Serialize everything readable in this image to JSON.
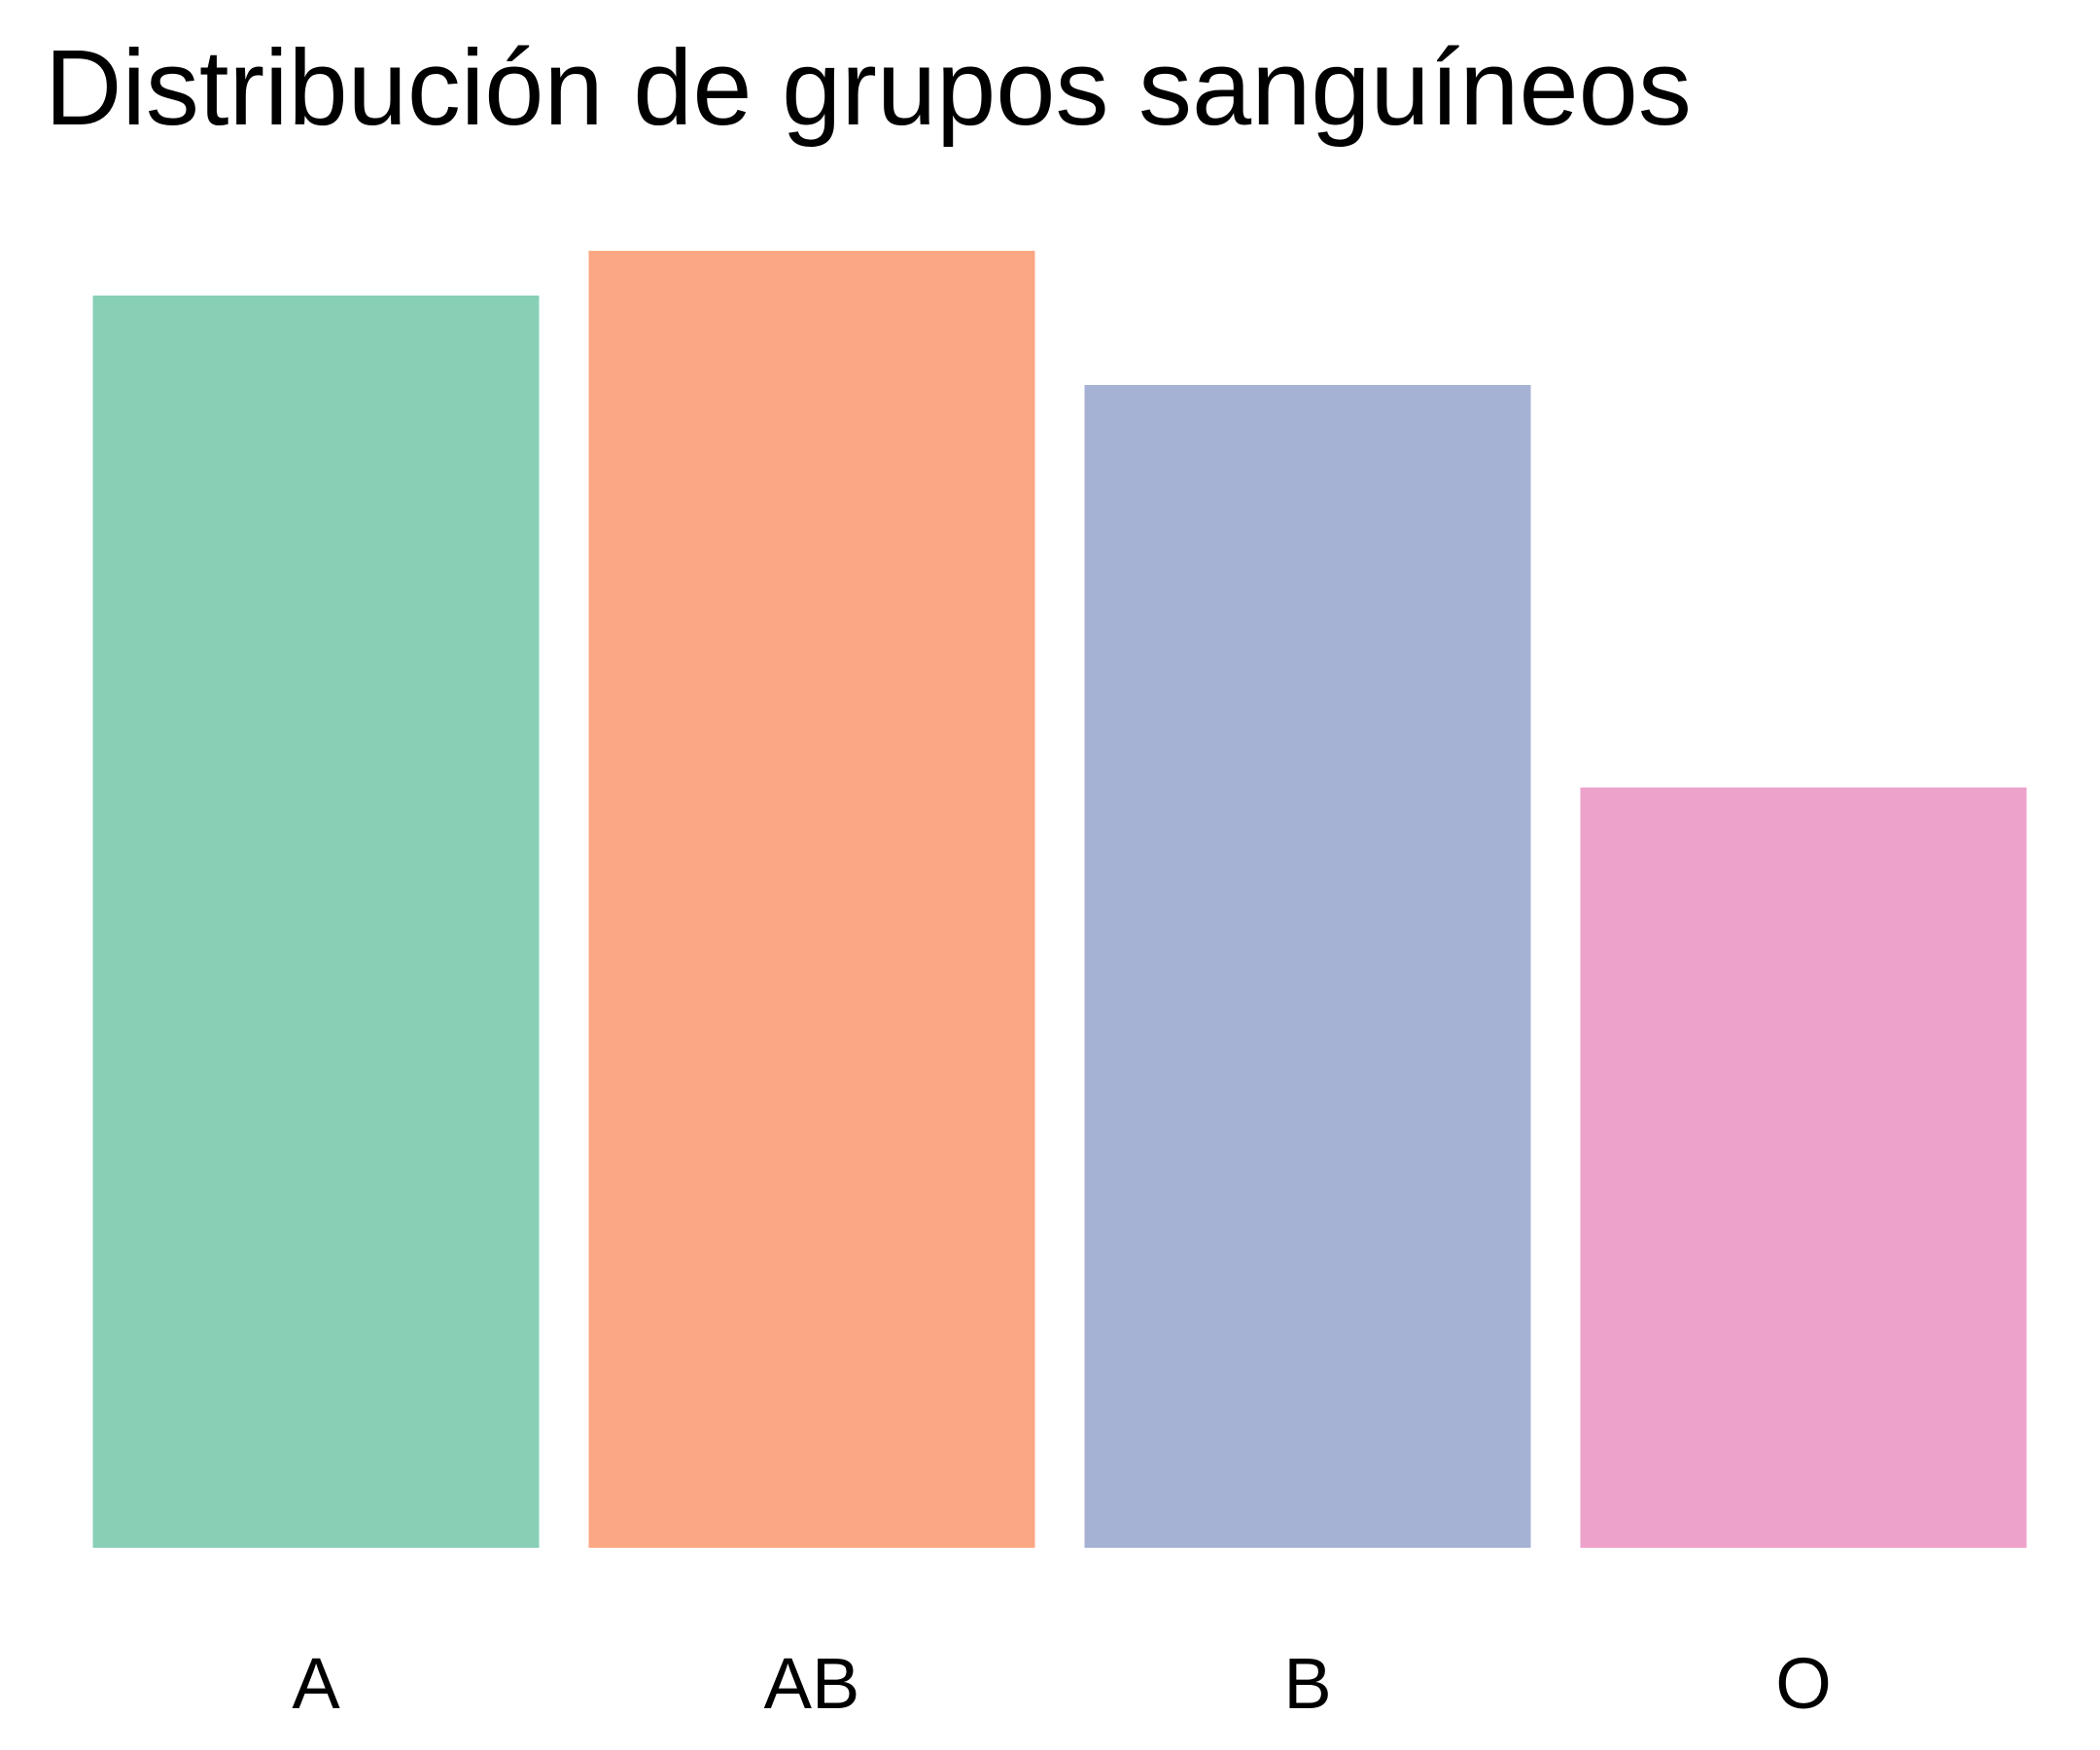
{
  "chart_data": {
    "type": "bar",
    "title": "Distribución de grupos sanguíneos",
    "xlabel": "",
    "ylabel": "",
    "categories": [
      "A",
      "AB",
      "B",
      "O"
    ],
    "values": [
      28,
      29,
      26,
      17
    ],
    "colors": [
      "#88cfb6",
      "#fba783",
      "#a5b2d4",
      "#eda2cc"
    ],
    "ylim": [
      0,
      29
    ],
    "grid": false,
    "legend": "none"
  }
}
